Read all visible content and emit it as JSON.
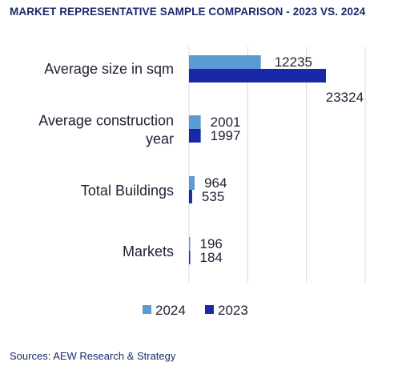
{
  "header": {
    "title": "MARKET REPRESENTATIVE SAMPLE COMPARISON - 2023 VS. 2024"
  },
  "footer": {
    "source": "Sources: AEW Research & Strategy"
  },
  "chart_data": {
    "type": "bar",
    "orientation": "horizontal",
    "categories": [
      [
        "Average size in sqm"
      ],
      [
        "Average construction",
        "year"
      ],
      [
        "Total Buildings"
      ],
      [
        "Markets"
      ]
    ],
    "series": [
      {
        "name": "2024",
        "color": "#5b9bd5",
        "values": [
          12235,
          2001,
          964,
          196
        ]
      },
      {
        "name": "2023",
        "color": "#1a27a6",
        "values": [
          23324,
          1997,
          535,
          184
        ]
      }
    ],
    "xlim": [
      0,
      30000
    ],
    "xgrid": [
      0,
      10000,
      20000,
      30000
    ],
    "grid": true,
    "legend_position": "bottom"
  }
}
